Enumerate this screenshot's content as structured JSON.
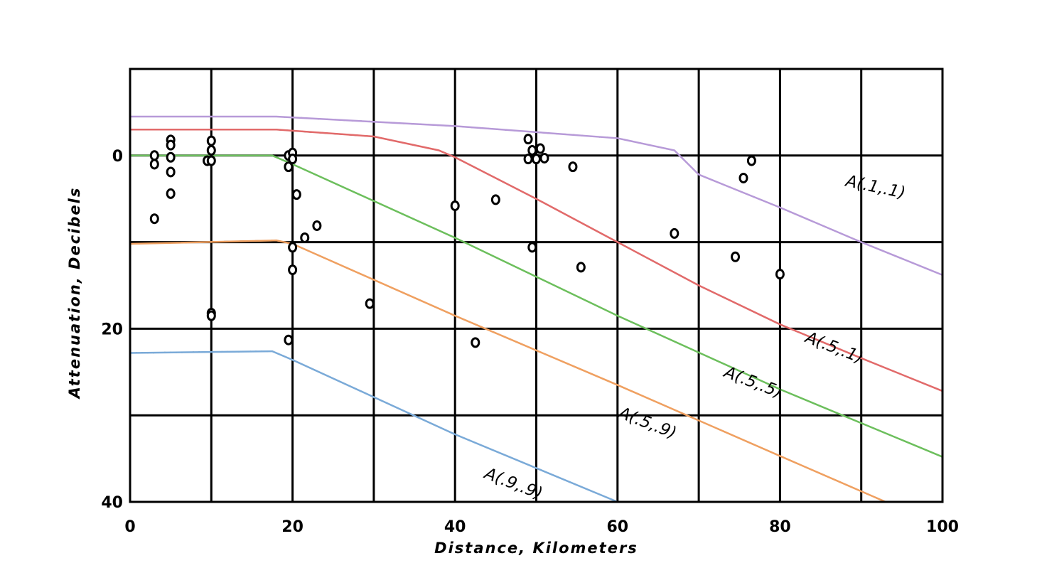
{
  "chart_data": {
    "type": "line",
    "xlabel": "Distance, Kilometers",
    "ylabel": "Attenuation, Decibels",
    "xlim": [
      0,
      100
    ],
    "ylim": [
      -10,
      40
    ],
    "y_inverted": true,
    "x_ticks": [
      "0",
      "20",
      "40",
      "60",
      "80",
      "100"
    ],
    "x_tick_values": [
      0,
      20,
      40,
      60,
      80,
      100
    ],
    "y_ticks": [
      "0",
      "20",
      "40"
    ],
    "y_tick_values": [
      0,
      20,
      40
    ],
    "grid": true,
    "legend": "none",
    "series": [
      {
        "label": "A(.1,.1)",
        "color": "#b79ad8",
        "label_at": [
          88,
          3.5
        ],
        "label_angle": 12,
        "x": [
          0,
          18,
          40,
          60,
          67,
          70,
          80,
          90,
          100
        ],
        "y": [
          -4.5,
          -4.5,
          -3.4,
          -2.0,
          -0.6,
          2.2,
          6.0,
          10.0,
          13.8
        ]
      },
      {
        "label": "A(.5,.1)",
        "color": "#e26a6a",
        "label_at": [
          83,
          21.5
        ],
        "label_angle": 21,
        "x": [
          0,
          18,
          30,
          38,
          40,
          50,
          60,
          70,
          80,
          90,
          100
        ],
        "y": [
          -3.0,
          -3.0,
          -2.2,
          -0.6,
          0.2,
          5.0,
          10.0,
          15.0,
          19.5,
          23.4,
          27.2
        ]
      },
      {
        "label": "A(.5,.5)",
        "color": "#6cbf5c",
        "label_at": [
          73,
          25.5
        ],
        "label_angle": 21,
        "x": [
          0,
          17.5,
          20,
          40,
          60,
          80,
          100
        ],
        "y": [
          0,
          0,
          1.0,
          9.5,
          18.5,
          27.0,
          34.8
        ]
      },
      {
        "label": "A(.5,.9)",
        "color": "#f0a060",
        "label_at": [
          60,
          30.2
        ],
        "label_angle": 21,
        "x": [
          0,
          18,
          20,
          40,
          60,
          80,
          93
        ],
        "y": [
          10.2,
          9.8,
          10.2,
          18.5,
          26.5,
          34.7,
          40
        ]
      },
      {
        "label": "A(.9,.9)",
        "color": "#7aaad8",
        "label_at": [
          43.5,
          37.2
        ],
        "label_angle": 21,
        "x": [
          0,
          17.5,
          20,
          40,
          60
        ],
        "y": [
          22.8,
          22.6,
          23.6,
          32.2,
          40
        ]
      }
    ],
    "observations": [
      [
        3,
        0
      ],
      [
        3,
        1
      ],
      [
        3,
        7.3
      ],
      [
        5,
        -1.8
      ],
      [
        5,
        -1.2
      ],
      [
        5,
        0.2
      ],
      [
        5,
        1.9
      ],
      [
        5,
        4.4
      ],
      [
        9.5,
        0.6
      ],
      [
        10,
        -1.7
      ],
      [
        10,
        -0.6
      ],
      [
        10,
        0.6
      ],
      [
        10,
        18.2
      ],
      [
        10,
        18.5
      ],
      [
        19.5,
        0
      ],
      [
        19.5,
        1.3
      ],
      [
        20,
        -0.3
      ],
      [
        20,
        0.4
      ],
      [
        20,
        10.6
      ],
      [
        20,
        13.2
      ],
      [
        20.5,
        4.5
      ],
      [
        19.5,
        21.3
      ],
      [
        21.5,
        9.5
      ],
      [
        23,
        8.1
      ],
      [
        29.5,
        17.1
      ],
      [
        40,
        5.8
      ],
      [
        42.5,
        21.6
      ],
      [
        45,
        5.1
      ],
      [
        49,
        -1.9
      ],
      [
        49,
        0.4
      ],
      [
        49.5,
        10.6
      ],
      [
        49.5,
        -0.6
      ],
      [
        50,
        0.4
      ],
      [
        50.5,
        -0.8
      ],
      [
        51,
        0.3
      ],
      [
        54.5,
        1.3
      ],
      [
        55.5,
        12.9
      ],
      [
        67,
        9.0
      ],
      [
        74.5,
        11.7
      ],
      [
        75.5,
        2.6
      ],
      [
        76.5,
        0.6
      ],
      [
        80,
        13.7
      ]
    ]
  }
}
